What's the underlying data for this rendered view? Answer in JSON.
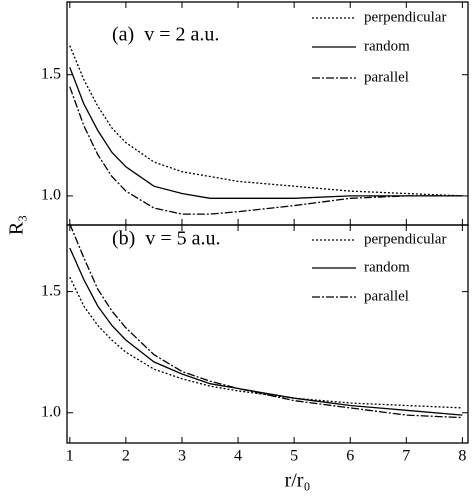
{
  "chart_data": [
    {
      "type": "line",
      "title": "(a)  v = 2 a.u.",
      "y_label": "R₃",
      "x": [
        1,
        1.25,
        1.5,
        1.75,
        2,
        2.5,
        3,
        3.5,
        4,
        5,
        6,
        7,
        8
      ],
      "series": [
        {
          "name": "perpendicular",
          "color": "#000000",
          "dash": "2,2",
          "values": [
            1.62,
            1.48,
            1.37,
            1.28,
            1.22,
            1.14,
            1.1,
            1.08,
            1.06,
            1.04,
            1.02,
            1.01,
            1.0
          ]
        },
        {
          "name": "random",
          "color": "#000000",
          "dash": "none",
          "values": [
            1.53,
            1.38,
            1.27,
            1.18,
            1.12,
            1.04,
            1.01,
            0.99,
            0.99,
            0.99,
            1.0,
            1.0,
            1.0
          ]
        },
        {
          "name": "parallel",
          "color": "#000000",
          "dash": "8,2,2,2",
          "values": [
            1.45,
            1.29,
            1.17,
            1.08,
            1.02,
            0.95,
            0.925,
            0.925,
            0.935,
            0.96,
            0.99,
            1.0,
            1.0
          ]
        }
      ],
      "xlim": [
        0.95,
        8.1
      ],
      "xticks": [
        1,
        2,
        3,
        4,
        5,
        6,
        7,
        8
      ],
      "ylim": [
        0.88,
        1.8
      ],
      "yticks": [
        {
          "value": 1,
          "label": "1.0"
        },
        {
          "value": 1.5,
          "label": "1.5"
        }
      ],
      "legend": "upper right"
    },
    {
      "type": "line",
      "title": "(b)  v = 5 a.u.",
      "x_label": "r/r₀",
      "x": [
        1,
        1.25,
        1.5,
        1.75,
        2,
        2.5,
        3,
        3.5,
        4,
        5,
        6,
        7,
        8
      ],
      "series": [
        {
          "name": "perpendicular",
          "color": "#000000",
          "dash": "2,2",
          "values": [
            1.56,
            1.44,
            1.36,
            1.3,
            1.25,
            1.18,
            1.14,
            1.11,
            1.09,
            1.06,
            1.04,
            1.03,
            1.02
          ]
        },
        {
          "name": "random",
          "color": "#000000",
          "dash": "none",
          "values": [
            1.68,
            1.55,
            1.44,
            1.36,
            1.3,
            1.21,
            1.16,
            1.12,
            1.1,
            1.06,
            1.03,
            1.01,
            0.99
          ]
        },
        {
          "name": "parallel",
          "color": "#000000",
          "dash": "8,2,2,2",
          "values": [
            1.78,
            1.64,
            1.51,
            1.42,
            1.35,
            1.24,
            1.17,
            1.13,
            1.1,
            1.05,
            1.02,
            0.99,
            0.98
          ]
        }
      ],
      "xlim": [
        0.95,
        8.1
      ],
      "xticks": [
        1,
        2,
        3,
        4,
        5,
        6,
        7,
        8
      ],
      "ylim": [
        0.875,
        1.775
      ],
      "yticks": [
        {
          "value": 1,
          "label": "1.0"
        },
        {
          "value": 1.5,
          "label": "1.5"
        }
      ],
      "legend": "upper right"
    }
  ]
}
